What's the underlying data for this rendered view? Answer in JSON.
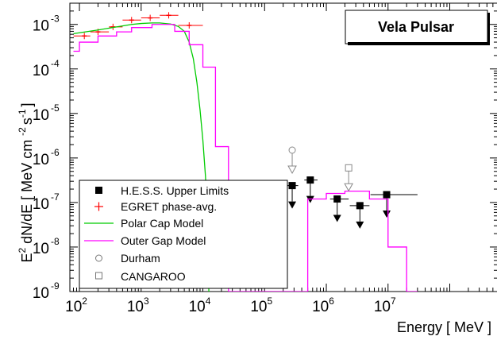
{
  "chart_data": {
    "type": "scatter",
    "title": "Vela Pulsar",
    "xlabel": "Energy [ MeV ]",
    "ylabel_parts": {
      "e": "E",
      "sq": "2",
      "mid": " dN/dE [ MeV cm ",
      "cm_exp": "-2",
      "s": "s",
      "s_exp": "-1",
      "end": "]"
    },
    "xscale": "log",
    "yscale": "log",
    "xlim": [
      70,
      600000000
    ],
    "ylim": [
      1e-09,
      0.003
    ],
    "x_ticks": [
      {
        "value": 100,
        "base": "10",
        "exp": "2"
      },
      {
        "value": 1000,
        "base": "10",
        "exp": "3"
      },
      {
        "value": 10000,
        "base": "10",
        "exp": "4"
      },
      {
        "value": 100000,
        "base": "10",
        "exp": "5"
      },
      {
        "value": 1000000,
        "base": "10",
        "exp": "6"
      },
      {
        "value": 10000000,
        "base": "10",
        "exp": "7"
      }
    ],
    "y_ticks": [
      {
        "value": 0.001,
        "base": "10",
        "exp": "-3"
      },
      {
        "value": 0.0001,
        "base": "10",
        "exp": "-4"
      },
      {
        "value": 1e-05,
        "base": "10",
        "exp": "-5"
      },
      {
        "value": 1e-06,
        "base": "10",
        "exp": "-6"
      },
      {
        "value": 1e-07,
        "base": "10",
        "exp": "-7"
      },
      {
        "value": 1e-08,
        "base": "10",
        "exp": "-8"
      },
      {
        "value": 1e-09,
        "base": "10",
        "exp": "-9"
      }
    ],
    "legend_position": "bottom-left",
    "series": [
      {
        "name": "H.E.S.S. Upper Limits",
        "kind": "upper-limit-squares",
        "color": "#000000",
        "points": [
          {
            "x": 280000,
            "y": 2.4e-07,
            "xlo": 220000,
            "xhi": 350000
          },
          {
            "x": 550000,
            "y": 3.2e-07,
            "xlo": 440000,
            "xhi": 720000
          },
          {
            "x": 1500000,
            "y": 1.2e-07,
            "xlo": 1150000,
            "xhi": 2300000
          },
          {
            "x": 3500000,
            "y": 8.5e-08,
            "xlo": 2400000,
            "xhi": 5000000
          },
          {
            "x": 9500000,
            "y": 1.5e-07,
            "xlo": 5200000,
            "xhi": 30000000
          }
        ]
      },
      {
        "name": "EGRET phase-avg.",
        "kind": "crosses",
        "color": "#ff0000",
        "points": [
          {
            "x": 120,
            "y": 0.00055,
            "xlo": 80,
            "xhi": 150
          },
          {
            "x": 200,
            "y": 0.00068,
            "xlo": 150,
            "xhi": 300
          },
          {
            "x": 350,
            "y": 0.00088,
            "xlo": 300,
            "xhi": 500
          },
          {
            "x": 700,
            "y": 0.00125,
            "xlo": 500,
            "xhi": 1000
          },
          {
            "x": 1400,
            "y": 0.0014,
            "xlo": 1000,
            "xhi": 2000
          },
          {
            "x": 2800,
            "y": 0.0016,
            "xlo": 2000,
            "xhi": 4000
          },
          {
            "x": 6000,
            "y": 0.00095,
            "xlo": 4000,
            "xhi": 10000
          }
        ]
      },
      {
        "name": "Polar Cap Model",
        "kind": "line",
        "color": "#00cc00",
        "points": [
          [
            80,
            0.00062
          ],
          [
            100,
            0.00065
          ],
          [
            200,
            0.00075
          ],
          [
            400,
            0.00088
          ],
          [
            700,
            0.001
          ],
          [
            1000,
            0.00105
          ],
          [
            1500,
            0.00108
          ],
          [
            2000,
            0.00108
          ],
          [
            3000,
            0.00102
          ],
          [
            4000,
            0.0009
          ],
          [
            5000,
            0.0007
          ],
          [
            6000,
            0.0004
          ],
          [
            7000,
            0.00017
          ],
          [
            8000,
            5e-05
          ],
          [
            9000,
            1.2e-05
          ],
          [
            10000,
            2.5e-06
          ],
          [
            11000,
            4e-07
          ],
          [
            12000,
            4e-08
          ],
          [
            12500,
            1e-09
          ]
        ]
      },
      {
        "name": "Outer Gap Model",
        "kind": "step",
        "color": "#ff00ff",
        "bins": [
          {
            "x0": 80,
            "x1": 100,
            "y": 0.00025
          },
          {
            "x0": 100,
            "x1": 200,
            "y": 0.0004
          },
          {
            "x0": 200,
            "x1": 400,
            "y": 0.00055
          },
          {
            "x0": 400,
            "x1": 700,
            "y": 0.00068
          },
          {
            "x0": 700,
            "x1": 1500,
            "y": 0.00085
          },
          {
            "x0": 1500,
            "x1": 3500,
            "y": 0.001
          },
          {
            "x0": 3500,
            "x1": 6000,
            "y": 0.0007
          },
          {
            "x0": 6000,
            "x1": 10000,
            "y": 0.00035
          },
          {
            "x0": 10000,
            "x1": 16000,
            "y": 0.00011
          },
          {
            "x0": 16000,
            "x1": 26000,
            "y": 1.8e-06
          },
          {
            "x0": 26000,
            "x1": 500000,
            "y": 1e-09
          },
          {
            "x0": 500000,
            "x1": 1000000,
            "y": 1.2e-07
          },
          {
            "x0": 1000000,
            "x1": 2000000,
            "y": 1.6e-07
          },
          {
            "x0": 2000000,
            "x1": 5000000,
            "y": 1.8e-07
          },
          {
            "x0": 5000000,
            "x1": 10000000,
            "y": 1.2e-07
          },
          {
            "x0": 10000000,
            "x1": 20000000,
            "y": 1e-08
          },
          {
            "x0": 20000000,
            "x1": 30000000,
            "y": 1e-09
          }
        ]
      },
      {
        "name": "Durham",
        "kind": "open-circle-limit",
        "color": "#888888",
        "points": [
          {
            "x": 280000,
            "y": 1.5e-06
          }
        ]
      },
      {
        "name": "CANGAROO",
        "kind": "open-square-limit",
        "color": "#888888",
        "points": [
          {
            "x": 2300000,
            "y": 6e-07
          }
        ]
      }
    ]
  }
}
